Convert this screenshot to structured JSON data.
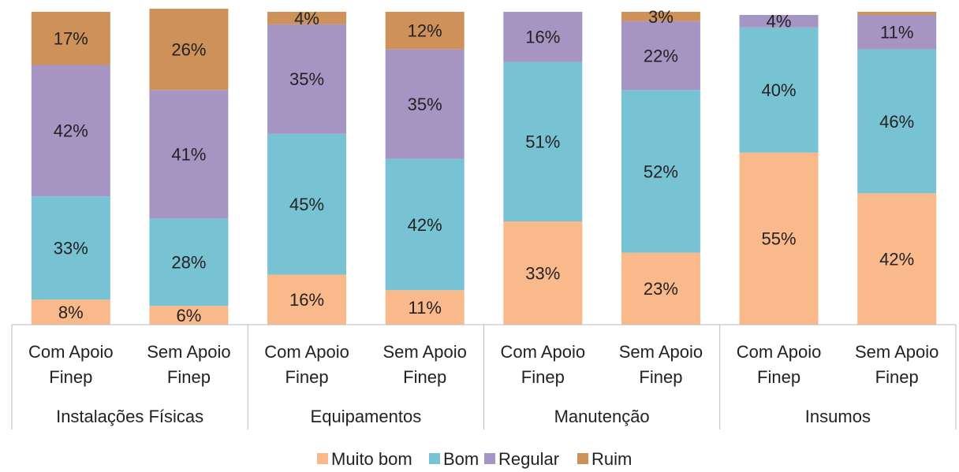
{
  "chart_data": {
    "type": "stacked_bar",
    "categories": [
      "Com Apoio Finep",
      "Sem Apoio Finep",
      "Com Apoio Finep",
      "Sem Apoio Finep",
      "Com Apoio Finep",
      "Sem Apoio Finep",
      "Com Apoio Finep",
      "Sem Apoio Finep"
    ],
    "groups": [
      "Instalações Físicas",
      "Equipamentos",
      "Manutenção",
      "Insumos"
    ],
    "series": [
      {
        "name": "Muito bom",
        "color": "#f9b98a",
        "values": [
          8,
          6,
          16,
          11,
          33,
          23,
          55,
          42
        ],
        "value_labels": [
          "8%",
          "6%",
          "16%",
          "11%",
          "33%",
          "23%",
          "55%",
          "42%"
        ]
      },
      {
        "name": "Bom",
        "color": "#77c3d3",
        "values": [
          33,
          28,
          45,
          42,
          51,
          52,
          40,
          46
        ],
        "value_labels": [
          "33%",
          "28%",
          "45%",
          "42%",
          "51%",
          "52%",
          "40%",
          "46%"
        ]
      },
      {
        "name": "Regular",
        "color": "#a694c3",
        "values": [
          42,
          41,
          35,
          35,
          16,
          22,
          4,
          11
        ],
        "value_labels": [
          "42%",
          "41%",
          "35%",
          "35%",
          "16%",
          "22%",
          "4%",
          "11%"
        ]
      },
      {
        "name": "Ruim",
        "color": "#cf915a",
        "values": [
          17,
          26,
          4,
          12,
          null,
          3,
          null,
          1
        ],
        "value_labels": [
          "17%",
          "26%",
          "4%",
          "12%",
          null,
          "3%",
          null,
          null
        ]
      }
    ],
    "legend": "bottom"
  }
}
